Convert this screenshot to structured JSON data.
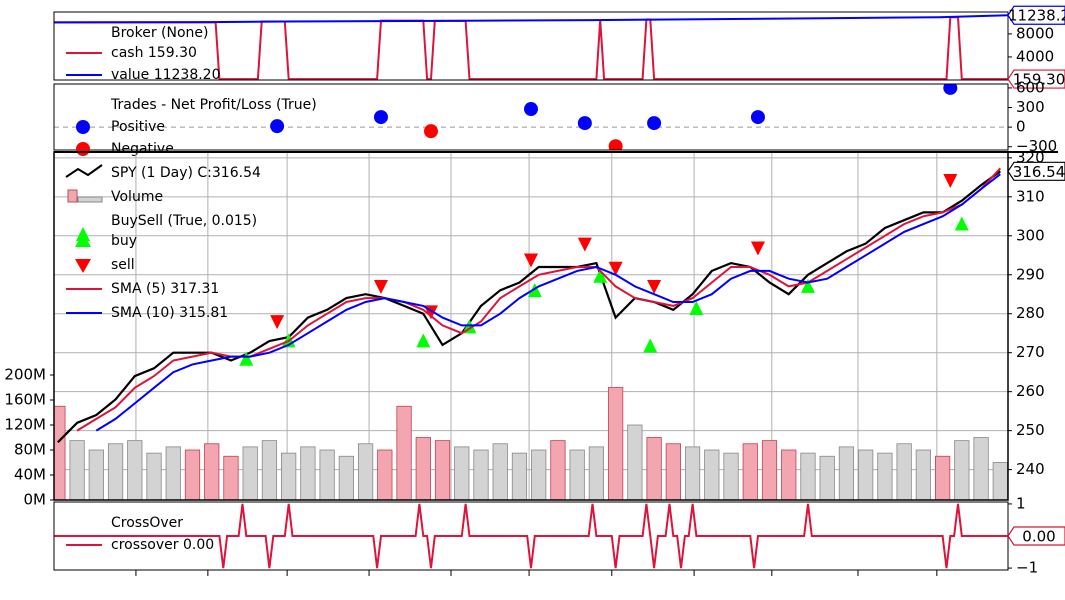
{
  "chart_data": [
    {
      "type": "line",
      "title": "Broker (None)",
      "xlim": [
        0,
        248
      ],
      "ylim": [
        0,
        11800
      ],
      "yticks": [
        4000,
        8000
      ],
      "series": [
        {
          "name": "cash 159.30",
          "color": "#dc143c",
          "value_tag": "159.30",
          "x": [
            0,
            42,
            43,
            53,
            54,
            60,
            61,
            84,
            85,
            96,
            97,
            98,
            99,
            107,
            108,
            141,
            142,
            143,
            153,
            154,
            155,
            156,
            232,
            233,
            235,
            236,
            248
          ],
          "values": [
            10000,
            10000,
            159,
            159,
            10150,
            10150,
            159,
            159,
            10300,
            10300,
            159,
            159,
            10250,
            10250,
            159,
            159,
            10400,
            159,
            159,
            10500,
            10500,
            159,
            159,
            10900,
            10900,
            159.3,
            159.3
          ]
        },
        {
          "name": "value 11238.20",
          "color": "#0000ff",
          "value_tag": "11238.2",
          "x": [
            0,
            40,
            60,
            100,
            140,
            160,
            200,
            230,
            248
          ],
          "values": [
            10000,
            10050,
            10150,
            10250,
            10400,
            10500,
            10700,
            10900,
            11238.2
          ]
        }
      ]
    },
    {
      "type": "scatter",
      "title": "Trades - Net Profit/Loss (True)",
      "xlim": [
        0,
        248
      ],
      "ylim": [
        -350,
        660
      ],
      "yticks": [
        {
          "value": -300,
          "label": "−300"
        },
        0,
        300,
        600
      ],
      "series": [
        {
          "name": "Positive",
          "color": "#0000ff",
          "x": [
            58,
            85,
            124,
            138,
            156,
            183,
            233
          ],
          "values": [
            15,
            154,
            277,
            62,
            62,
            154,
            600
          ]
        },
        {
          "name": "Negative",
          "color": "#ff0000",
          "x": [
            98,
            146
          ],
          "values": [
            -62,
            -292
          ]
        }
      ]
    },
    {
      "type": "price",
      "xlim": [
        0,
        248
      ],
      "ylim": [
        232.2,
        321.5
      ],
      "yticks": [
        240,
        250,
        260,
        270,
        280,
        290,
        300,
        310,
        320
      ],
      "y2lim": [
        0,
        556800000
      ],
      "y2ticks": [
        {
          "value": 0,
          "label": "0M"
        },
        {
          "value": 40000000,
          "label": "40M"
        },
        {
          "value": 80000000,
          "label": "80M"
        },
        {
          "value": 120000000,
          "label": "120M"
        },
        {
          "value": 160000000,
          "label": "160M"
        },
        {
          "value": 200000000,
          "label": "200M"
        }
      ],
      "xticks": [
        21.3,
        40,
        60.6,
        81.9,
        103.2,
        123.5,
        145,
        166.4,
        186.6,
        209,
        229.5
      ],
      "grid": true,
      "annotation": "BuySell (True, 0.015)",
      "series": [
        {
          "name": "SPY (1 Day) C:316.54",
          "type": "line",
          "color": "#000000",
          "value_tag": "316.54",
          "x": [
            1,
            6,
            11,
            16,
            21,
            26,
            31,
            36,
            41,
            46,
            51,
            56,
            61,
            66,
            71,
            76,
            81,
            86,
            91,
            96,
            101,
            106,
            111,
            116,
            121,
            126,
            131,
            136,
            141,
            146,
            151,
            156,
            161,
            166,
            171,
            176,
            181,
            186,
            191,
            196,
            201,
            206,
            211,
            216,
            221,
            226,
            231,
            236,
            241,
            246
          ],
          "values": [
            247,
            252,
            254,
            258,
            264,
            266,
            270,
            270,
            270,
            268,
            270,
            273,
            274,
            279,
            281,
            284,
            285,
            284,
            282,
            280,
            272,
            275,
            282,
            286,
            288,
            292,
            292,
            292,
            293,
            279,
            284,
            283,
            281,
            285,
            291,
            293,
            292,
            288,
            285,
            290,
            293,
            296,
            298,
            302,
            304,
            306,
            306,
            309,
            313,
            316.54
          ]
        },
        {
          "name": "Volume",
          "type": "bar",
          "axis": "y2",
          "x": [
            1,
            6,
            11,
            16,
            21,
            26,
            31,
            36,
            41,
            46,
            51,
            56,
            61,
            66,
            71,
            76,
            81,
            86,
            91,
            96,
            101,
            106,
            111,
            116,
            121,
            126,
            131,
            136,
            141,
            146,
            151,
            156,
            161,
            166,
            171,
            176,
            181,
            186,
            191,
            196,
            201,
            206,
            211,
            216,
            221,
            226,
            231,
            236,
            241,
            246
          ],
          "values": [
            150000000,
            95000000,
            80000000,
            90000000,
            95000000,
            75000000,
            85000000,
            80000000,
            90000000,
            70000000,
            85000000,
            95000000,
            75000000,
            85000000,
            80000000,
            70000000,
            90000000,
            80000000,
            150000000,
            100000000,
            95000000,
            85000000,
            80000000,
            90000000,
            75000000,
            80000000,
            95000000,
            80000000,
            85000000,
            180000000,
            120000000,
            100000000,
            90000000,
            85000000,
            80000000,
            75000000,
            90000000,
            95000000,
            80000000,
            75000000,
            70000000,
            85000000,
            80000000,
            75000000,
            90000000,
            80000000,
            70000000,
            95000000,
            100000000,
            60000000
          ],
          "colors": [
            "#f4a6b0",
            "#d3d3d3",
            "#d3d3d3",
            "#d3d3d3",
            "#d3d3d3",
            "#d3d3d3",
            "#d3d3d3",
            "#f4a6b0",
            "#f4a6b0",
            "#f4a6b0",
            "#d3d3d3",
            "#d3d3d3",
            "#d3d3d3",
            "#d3d3d3",
            "#d3d3d3",
            "#d3d3d3",
            "#d3d3d3",
            "#f4a6b0",
            "#f4a6b0",
            "#f4a6b0",
            "#f4a6b0",
            "#d3d3d3",
            "#d3d3d3",
            "#d3d3d3",
            "#d3d3d3",
            "#d3d3d3",
            "#f4a6b0",
            "#d3d3d3",
            "#d3d3d3",
            "#f4a6b0",
            "#d3d3d3",
            "#f4a6b0",
            "#f4a6b0",
            "#d3d3d3",
            "#d3d3d3",
            "#d3d3d3",
            "#f4a6b0",
            "#f4a6b0",
            "#f4a6b0",
            "#d3d3d3",
            "#d3d3d3",
            "#d3d3d3",
            "#d3d3d3",
            "#d3d3d3",
            "#d3d3d3",
            "#d3d3d3",
            "#f4a6b0",
            "#d3d3d3",
            "#d3d3d3",
            "#d3d3d3"
          ]
        },
        {
          "name": "buy",
          "type": "scatter",
          "marker": "triangle-up",
          "color": "#00ff00",
          "x": [
            50,
            61,
            96,
            108,
            125,
            142,
            155,
            167,
            196,
            236
          ],
          "values": [
            268.2,
            272.9,
            272.9,
            276.5,
            285.8,
            289.5,
            271.6,
            281.2,
            286.9,
            302.9
          ]
        },
        {
          "name": "sell",
          "type": "scatter",
          "marker": "triangle-down",
          "color": "#ff0000",
          "x": [
            58,
            85,
            98,
            124,
            138,
            146,
            156,
            183,
            233
          ],
          "values": [
            278.1,
            287.1,
            280.6,
            293.9,
            298.0,
            291.8,
            287.1,
            297.0,
            314.3
          ]
        },
        {
          "name": "SMA (5) 317.31",
          "type": "line",
          "color": "#dc143c",
          "x": [
            1,
            6,
            11,
            16,
            21,
            26,
            31,
            36,
            41,
            46,
            51,
            56,
            61,
            66,
            71,
            76,
            81,
            86,
            91,
            96,
            101,
            106,
            111,
            116,
            121,
            126,
            131,
            136,
            141,
            146,
            151,
            156,
            161,
            166,
            171,
            176,
            181,
            186,
            191,
            196,
            201,
            206,
            211,
            216,
            221,
            226,
            231,
            236,
            241,
            246
          ],
          "values": [
            null,
            250,
            253,
            256,
            261,
            264,
            268,
            269,
            270,
            269,
            269,
            271,
            273,
            277,
            280,
            283,
            284,
            284,
            283,
            281,
            277,
            275,
            278,
            284,
            287,
            290,
            291,
            292,
            292,
            287,
            284,
            283,
            282,
            284,
            288,
            292,
            292,
            290,
            287,
            288,
            291,
            294,
            297,
            300,
            303,
            305,
            306,
            308,
            312,
            317.31
          ]
        },
        {
          "name": "SMA (10) 315.81",
          "type": "line",
          "color": "#0000ff",
          "x": [
            1,
            6,
            11,
            16,
            21,
            26,
            31,
            36,
            41,
            46,
            51,
            56,
            61,
            66,
            71,
            76,
            81,
            86,
            91,
            96,
            101,
            106,
            111,
            116,
            121,
            126,
            131,
            136,
            141,
            146,
            151,
            156,
            161,
            166,
            171,
            176,
            181,
            186,
            191,
            196,
            201,
            206,
            211,
            216,
            221,
            226,
            231,
            236,
            241,
            246
          ],
          "values": [
            null,
            null,
            250,
            253,
            257,
            261,
            265,
            267,
            268,
            269,
            269,
            270,
            272,
            275,
            278,
            281,
            283,
            284,
            283,
            282,
            279,
            277,
            277,
            280,
            284,
            287,
            289,
            291,
            292,
            290,
            287,
            285,
            283,
            283,
            285,
            289,
            291,
            291,
            289,
            288,
            289,
            292,
            295,
            298,
            301,
            303,
            305,
            308,
            312,
            315.81
          ]
        }
      ]
    },
    {
      "type": "line",
      "title": "CrossOver",
      "xlim": [
        0,
        248
      ],
      "ylim": [
        -1.06,
        1.06
      ],
      "yticks": [
        {
          "value": -1,
          "label": "−1"
        },
        1
      ],
      "series": [
        {
          "name": "crossover 0.00",
          "color": "#dc143c",
          "value_tag": "0.00",
          "x": [
            0,
            43,
            44,
            45,
            48,
            49,
            50,
            55,
            56,
            57,
            60,
            61,
            62,
            83,
            84,
            85,
            94,
            95,
            96,
            97,
            98,
            99,
            106,
            107,
            108,
            123,
            124,
            125,
            139,
            140,
            141,
            145,
            146,
            147,
            153,
            154,
            155,
            156,
            157,
            159,
            160,
            161,
            162,
            163,
            164,
            165,
            166,
            167,
            181,
            182,
            183,
            195,
            196,
            197,
            231,
            232,
            233,
            234,
            235,
            236,
            248
          ],
          "values": [
            0,
            0,
            -1,
            0,
            0,
            1,
            0,
            0,
            -1,
            0,
            0,
            1,
            0,
            0,
            -1,
            0,
            0,
            1,
            0,
            0,
            -1,
            0,
            0,
            1,
            0,
            0,
            -1,
            0,
            0,
            1,
            0,
            0,
            -1,
            0,
            0,
            1,
            0,
            -1,
            0,
            0,
            1,
            0,
            0,
            -1,
            0,
            0,
            1,
            0,
            0,
            -1,
            0,
            0,
            1,
            0,
            0,
            -1,
            0,
            0,
            1,
            0,
            0
          ]
        }
      ]
    }
  ]
}
